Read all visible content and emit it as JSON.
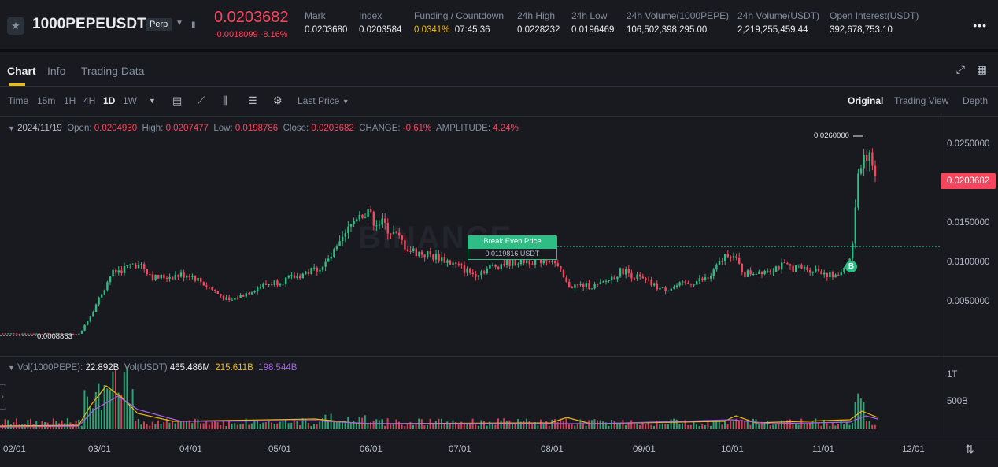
{
  "header": {
    "symbol": "1000PEPEUSDT",
    "contract_type": "Perp",
    "last_price": "0.0203682",
    "change": "-0.0018099 -8.16%",
    "stats": [
      {
        "label": "Mark",
        "value": "0.0203680"
      },
      {
        "label": "Index",
        "value": "0.0203584"
      },
      {
        "label": "Funding / Countdown",
        "value_funding": "0.0341%",
        "value_countdown": "07:45:36"
      },
      {
        "label": "24h High",
        "value": "0.0228232"
      },
      {
        "label": "24h Low",
        "value": "0.0196469"
      },
      {
        "label": "24h Volume(1000PEPE)",
        "value": "106,502,398,295.00"
      },
      {
        "label": "24h Volume(USDT)",
        "value": "2,219,255,459.44"
      },
      {
        "label_main": "Open Interest",
        "label_suffix": "(USDT)",
        "value": "392,678,753.10"
      }
    ]
  },
  "tabs": [
    "Chart",
    "Info",
    "Trading Data"
  ],
  "toolbar": {
    "time_label": "Time",
    "intervals": [
      "15m",
      "1H",
      "4H",
      "1D",
      "1W"
    ],
    "price_type": "Last Price",
    "views": [
      "Original",
      "Trading View",
      "Depth"
    ]
  },
  "ohlc": {
    "date": "2024/11/19",
    "open_label": "Open:",
    "open": "0.0204930",
    "high_label": "High:",
    "high": "0.0207477",
    "low_label": "Low:",
    "low": "0.0198786",
    "close_label": "Close:",
    "close": "0.0203682",
    "change_label": "CHANGE:",
    "change": "-0.61%",
    "amplitude_label": "AMPLITUDE:",
    "amplitude": "4.24%"
  },
  "price_axis": [
    "0.0250000",
    "0.0150000",
    "0.0100000",
    "0.0050000"
  ],
  "current_price_tag": "0.0203682",
  "annotations": {
    "high": "0.0260000",
    "low": "0.0008853",
    "break_even_title": "Break Even Price",
    "break_even_value": "0.0119816 USDT",
    "buy_marker": "B",
    "watermark": "BINANCE"
  },
  "volume": {
    "label": "Vol(1000PEPE):",
    "value": "22.892B",
    "label_usdt": "Vol(USDT)",
    "value_usdt": "465.486M",
    "ma1": "215.611B",
    "ma2": "198.544B",
    "axis": [
      "1T",
      "500B"
    ]
  },
  "x_axis": [
    "02/01",
    "03/01",
    "04/01",
    "05/01",
    "06/01",
    "07/01",
    "08/01",
    "09/01",
    "10/01",
    "11/01",
    "12/01"
  ],
  "colors": {
    "up": "#2ebd85",
    "down": "#f6465d",
    "accent": "#f0b90b",
    "bg": "#181a20"
  }
}
